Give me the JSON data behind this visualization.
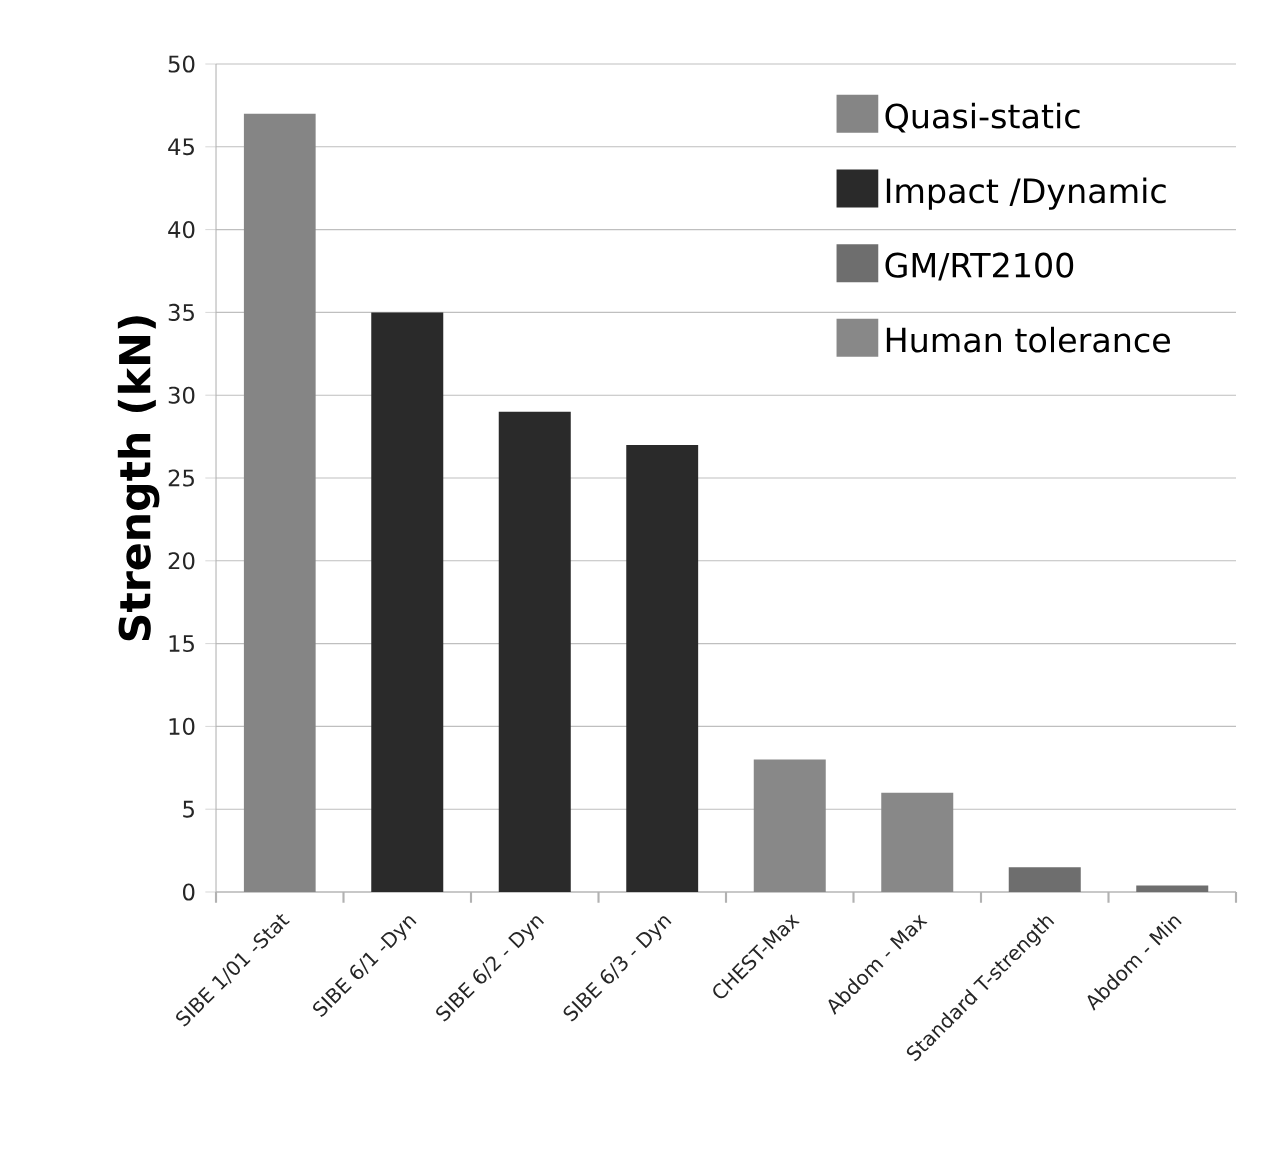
{
  "chart_data": {
    "type": "bar",
    "ylabel": "Strength (kN)",
    "categories": [
      "SIBE 1/01 -Stat",
      "SIBE 6/1 -Dyn",
      "SIBE 6/2 - Dyn",
      "SIBE 6/3 - Dyn",
      "CHEST-Max",
      "Abdom - Max",
      "Standard T-strength",
      "Abdom - Min"
    ],
    "series": [
      {
        "name": "Quasi-static",
        "color": "#858585",
        "values": [
          47,
          null,
          null,
          null,
          null,
          null,
          null,
          null
        ]
      },
      {
        "name": "Impact /Dynamic",
        "color": "#2a2a2a",
        "values": [
          null,
          35,
          29,
          27,
          null,
          null,
          null,
          null
        ]
      },
      {
        "name": "GM/RT2100",
        "color": "#6e6e6e",
        "values": [
          null,
          null,
          null,
          null,
          null,
          null,
          1.5,
          0.4
        ]
      },
      {
        "name": "Human tolerance",
        "color": "#888888",
        "values": [
          null,
          null,
          null,
          null,
          8,
          6,
          null,
          null
        ]
      }
    ],
    "ylim": [
      0,
      50
    ],
    "yticks": [
      0,
      5,
      10,
      15,
      20,
      25,
      30,
      35,
      40,
      45,
      50
    ],
    "grid": "y",
    "legend": "top right"
  }
}
